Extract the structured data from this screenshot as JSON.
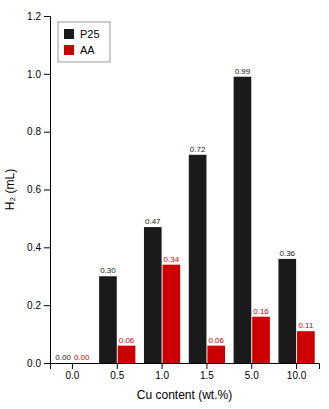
{
  "chart_data": {
    "type": "bar",
    "categories": [
      "0.0",
      "0.5",
      "1.0",
      "1.5",
      "5.0",
      "10.0"
    ],
    "series": [
      {
        "name": "P25",
        "color": "#1a1a1a",
        "values": [
          0.0,
          0.3,
          0.47,
          0.72,
          0.99,
          0.36
        ],
        "value_labels": [
          "0.00",
          "0.30",
          "0.47",
          "0.72",
          "0.99",
          "0.36"
        ]
      },
      {
        "name": "AA",
        "color": "#cc0000",
        "values": [
          0.0,
          0.06,
          0.34,
          0.06,
          0.16,
          0.11
        ],
        "value_labels": [
          "0.00",
          "0.06",
          "0.34",
          "0.06",
          "0.16",
          "0.11"
        ]
      }
    ],
    "xlabel": "Cu content (wt.%)",
    "ylabel": "H₂ (mL)",
    "ylim": [
      0.0,
      1.2
    ],
    "yticks": [
      {
        "value": 0,
        "label": "0.0"
      },
      0.2,
      0.4,
      0.6,
      0.8,
      {
        "value": 1,
        "label": "1.0"
      },
      1.2
    ],
    "data_labels": true,
    "grid": false,
    "legend": "upper left"
  }
}
